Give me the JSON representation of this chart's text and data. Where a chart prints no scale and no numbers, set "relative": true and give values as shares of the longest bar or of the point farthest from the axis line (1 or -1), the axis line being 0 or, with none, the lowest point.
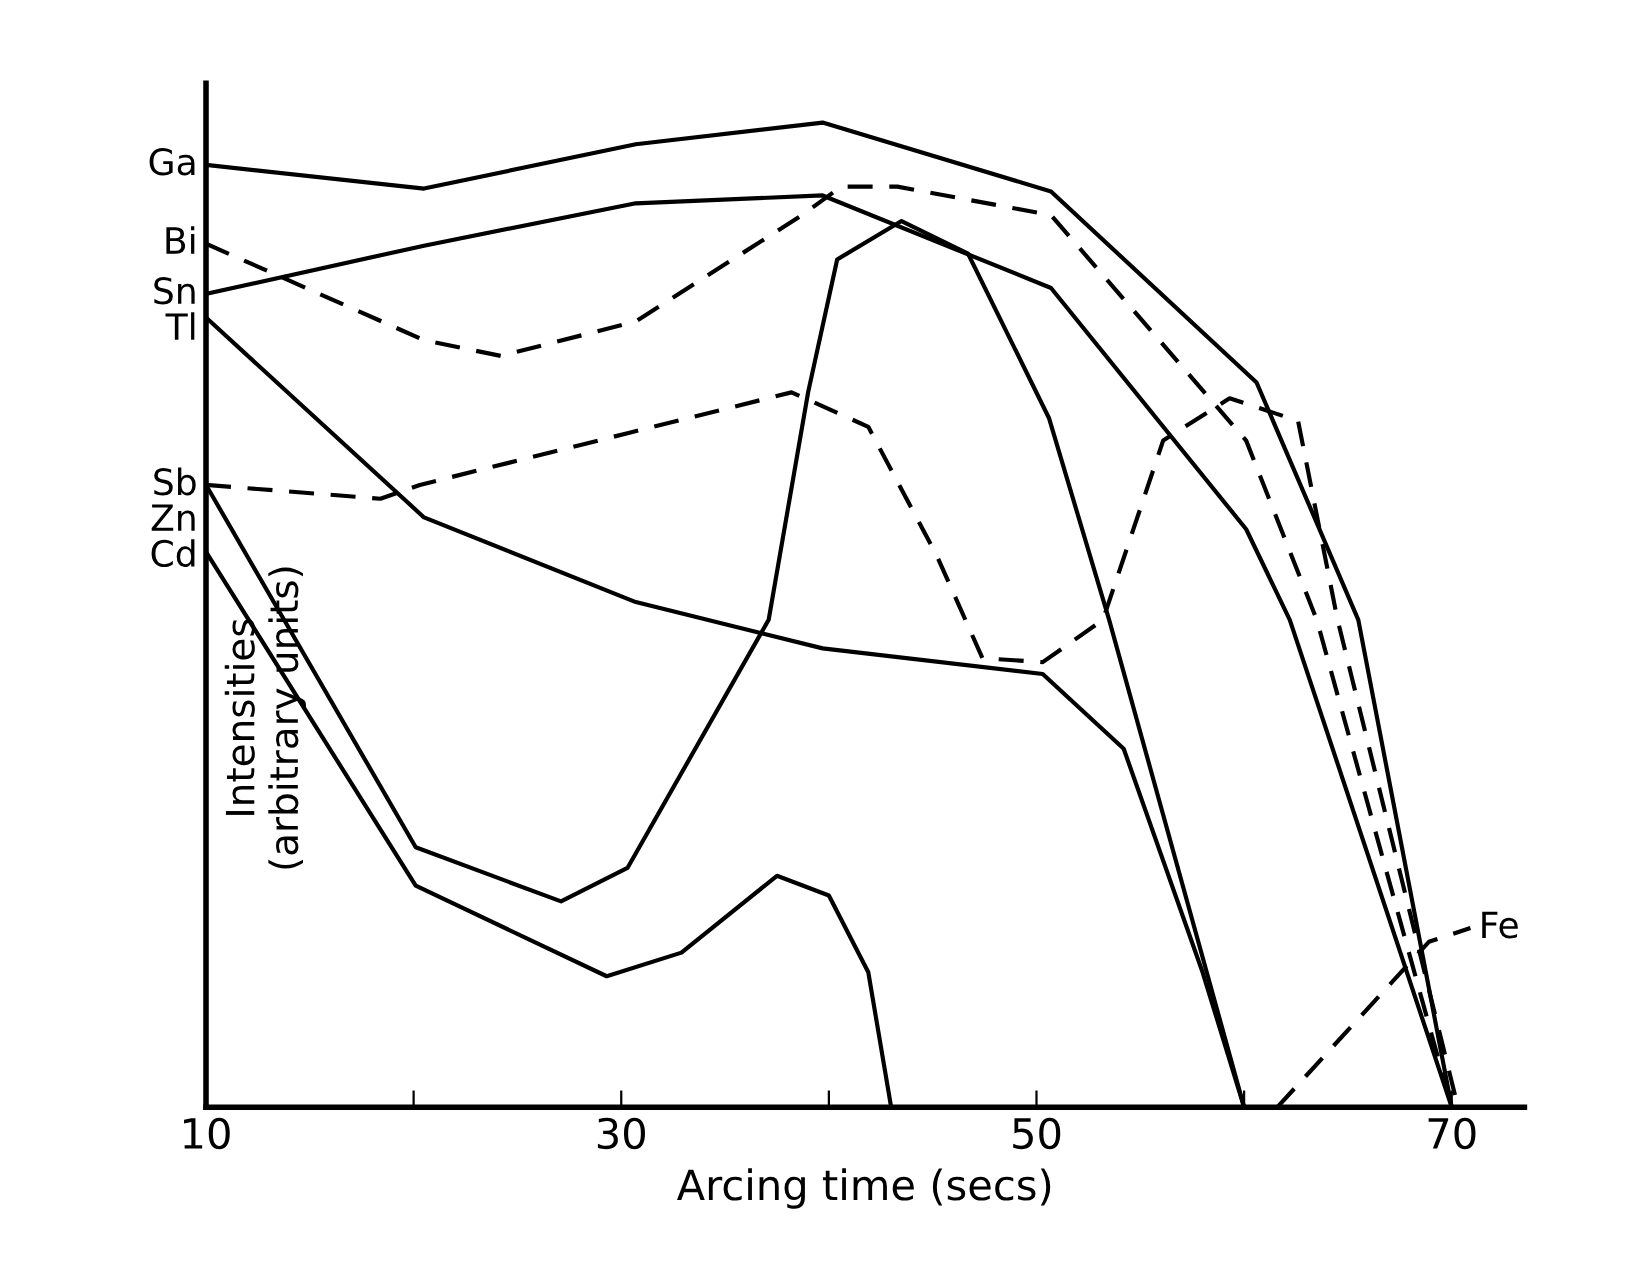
{
  "chart_data": {
    "type": "line",
    "relative": true,
    "xlabel": "Arcing time (secs)",
    "ylabel": "Intensities\n(arbitrary units)",
    "xlim": [
      10,
      73.5
    ],
    "xticks": [
      {
        "value": 10,
        "label": "10"
      },
      {
        "value": 20,
        "label": null
      },
      30,
      {
        "value": 40,
        "label": null
      },
      50,
      {
        "value": 60,
        "label": null
      },
      70
    ],
    "tick_labels": "x",
    "grid": false,
    "legend": false,
    "series": [
      {
        "name": "Ga",
        "color": "#000000",
        "line_style": "solid",
        "x": [
          10,
          20.5,
          30.7,
          39.7,
          50.7,
          60.6,
          65.5,
          70
        ],
        "values": [
          0.957,
          0.933,
          0.978,
          1.0,
          0.93,
          0.736,
          0.495,
          0
        ]
      },
      {
        "name": "Bi",
        "color": "#000000",
        "line_style": "dashed",
        "x": [
          10,
          20.5,
          24.2,
          30.7,
          38.7,
          40.6,
          43.3,
          50.7,
          60.1,
          63.5,
          70
        ],
        "values": [
          0.877,
          0.779,
          0.763,
          0.798,
          0.906,
          0.935,
          0.935,
          0.906,
          0.677,
          0.495,
          0
        ]
      },
      {
        "name": "Sn",
        "color": "#000000",
        "line_style": "solid",
        "x": [
          10,
          20.5,
          30.7,
          39.7,
          50.7,
          60.1,
          62.2,
          70
        ],
        "values": [
          0.826,
          0.875,
          0.918,
          0.926,
          0.832,
          0.587,
          0.495,
          0
        ]
      },
      {
        "name": "Tl",
        "color": "#000000",
        "line_style": "solid",
        "x": [
          10,
          20.5,
          30.7,
          39.7,
          50.3,
          54.2,
          58,
          60
        ],
        "values": [
          0.802,
          0.599,
          0.513,
          0.466,
          0.44,
          0.364,
          0.137,
          0
        ]
      },
      {
        "name": "Sb",
        "color": "#000000",
        "line_style": "dashed",
        "x": [
          10,
          18.4,
          20.3,
          30.4,
          38.2,
          41.9,
          45.2,
          47.4,
          50.3,
          53.2,
          56.1,
          59.3,
          62.6,
          64.5,
          70.3
        ],
        "values": [
          0.632,
          0.618,
          0.632,
          0.685,
          0.726,
          0.691,
          0.56,
          0.456,
          0.452,
          0.495,
          0.677,
          0.72,
          0.697,
          0.495,
          0
        ]
      },
      {
        "name": "Zn",
        "color": "#000000",
        "line_style": "solid",
        "x": [
          10,
          20.1,
          27.1,
          30.3,
          37.1,
          39,
          40.4,
          43.5,
          46.7,
          50.6,
          53.5,
          60
        ],
        "values": [
          0.632,
          0.264,
          0.209,
          0.243,
          0.495,
          0.726,
          0.861,
          0.9,
          0.867,
          0.7,
          0.495,
          0
        ]
      },
      {
        "name": "Cd",
        "color": "#000000",
        "line_style": "solid",
        "x": [
          10,
          20.1,
          29.3,
          32.9,
          37.5,
          40,
          41.9,
          43
        ],
        "values": [
          0.564,
          0.225,
          0.133,
          0.157,
          0.235,
          0.215,
          0.137,
          0
        ]
      },
      {
        "name": "Fe",
        "color": "#000000",
        "line_style": "dashed",
        "x": [
          61.6,
          68.9,
          70.9
        ],
        "values": [
          0,
          0.168,
          0.182
        ]
      }
    ]
  }
}
